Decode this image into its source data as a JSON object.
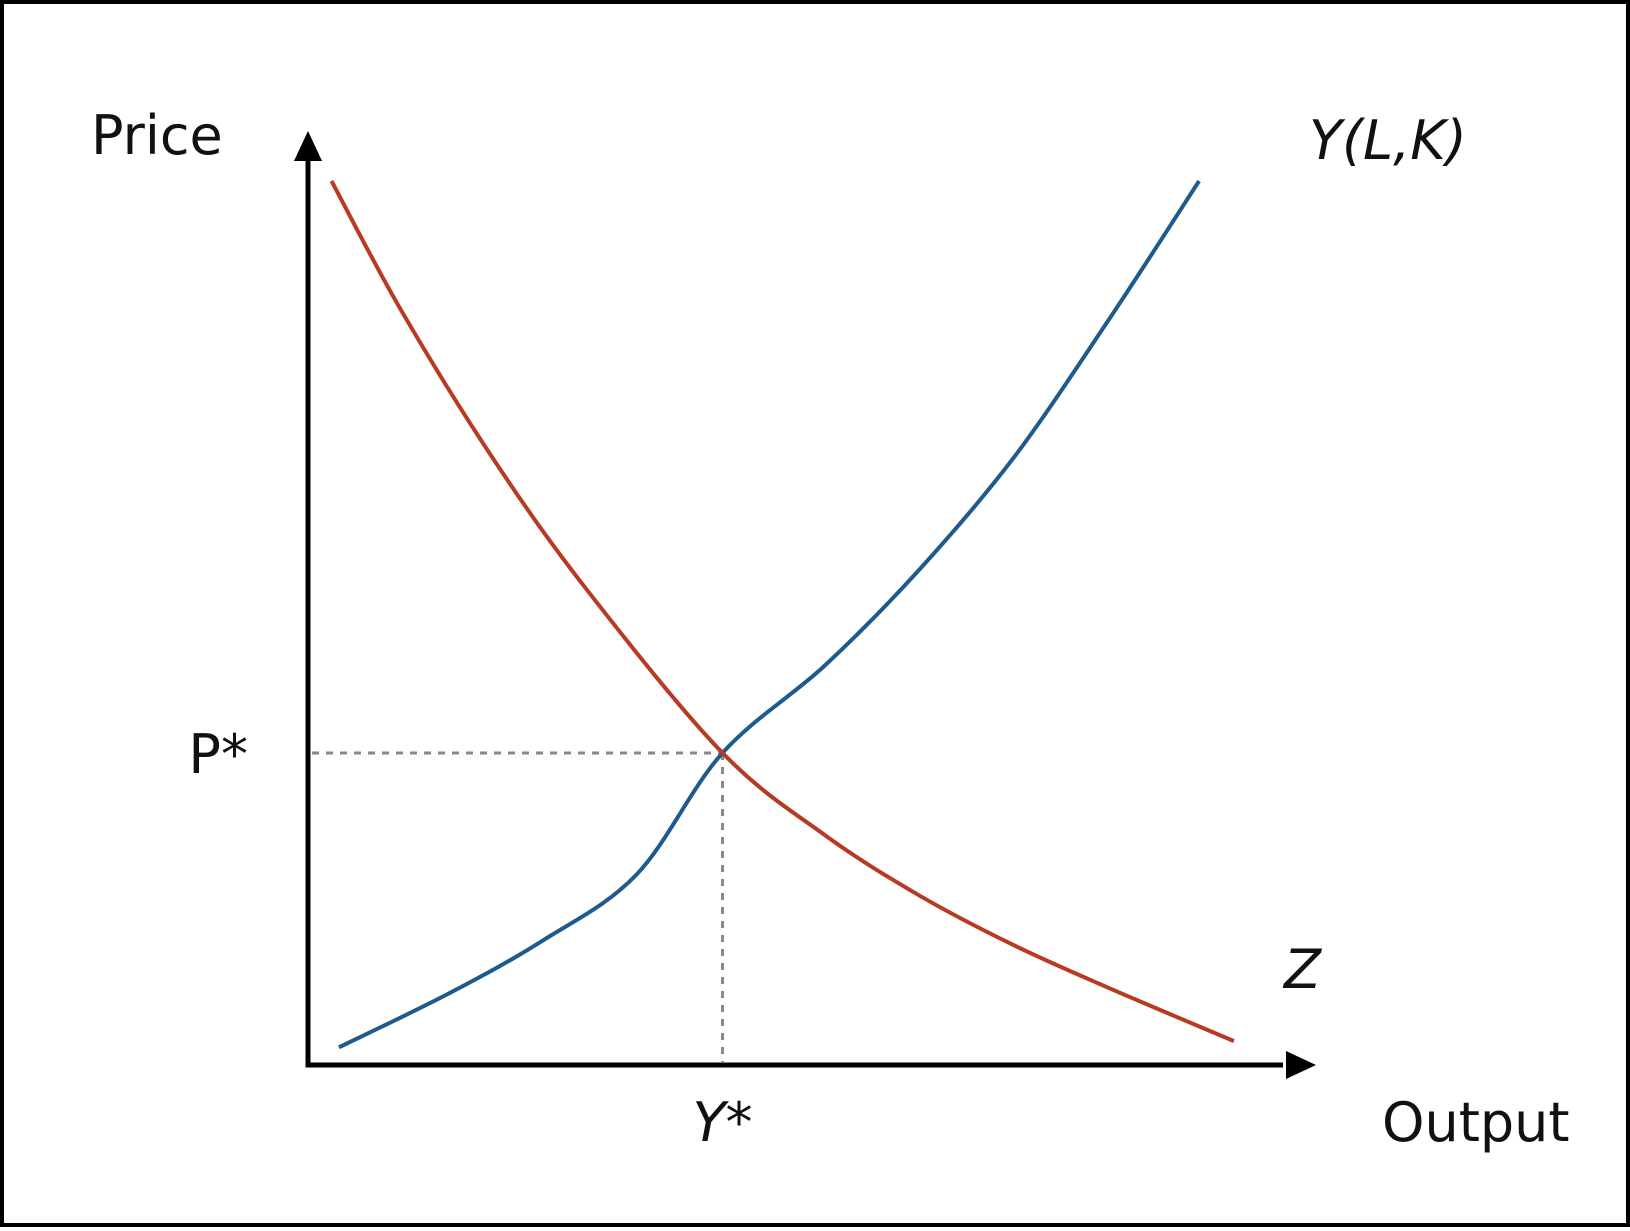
{
  "chart_data": {
    "type": "line",
    "title": "",
    "xlabel": "Output",
    "ylabel": "Price",
    "xlim": [
      0,
      10
    ],
    "ylim": [
      0,
      10
    ],
    "grid": false,
    "legend": "none",
    "series": [
      {
        "name": "Y(L,K)",
        "color": "#1f5a8c",
        "x": [
          0.33,
          1.5,
          2.5,
          3.5,
          4.41,
          5.5,
          6.5,
          7.5,
          8.5,
          9.48
        ],
        "y": [
          0.2,
          0.81,
          1.41,
          2.16,
          3.53,
          4.52,
          5.6,
          6.86,
          8.4,
          10.0
        ]
      },
      {
        "name": "Z",
        "color": "#b83a22",
        "x": [
          0.25,
          1.0,
          2.0,
          3.0,
          4.41,
          5.5,
          6.5,
          7.5,
          8.5,
          9.85
        ],
        "y": [
          10.0,
          8.52,
          6.81,
          5.33,
          3.53,
          2.6,
          1.92,
          1.36,
          0.88,
          0.27
        ]
      }
    ],
    "equilibrium": {
      "x": 4.41,
      "y": 3.53
    },
    "x_ticks": [
      {
        "value": 4.41,
        "label": "Y*"
      }
    ],
    "y_ticks": [
      {
        "value": 3.53,
        "label": "P*"
      }
    ],
    "annotations": [
      {
        "text": "Y(L,K)",
        "color": "#1f5a8c"
      },
      {
        "text": "Z",
        "color": "#b83a22"
      }
    ],
    "axis_color": "#000000",
    "guide_color": "#888888"
  }
}
